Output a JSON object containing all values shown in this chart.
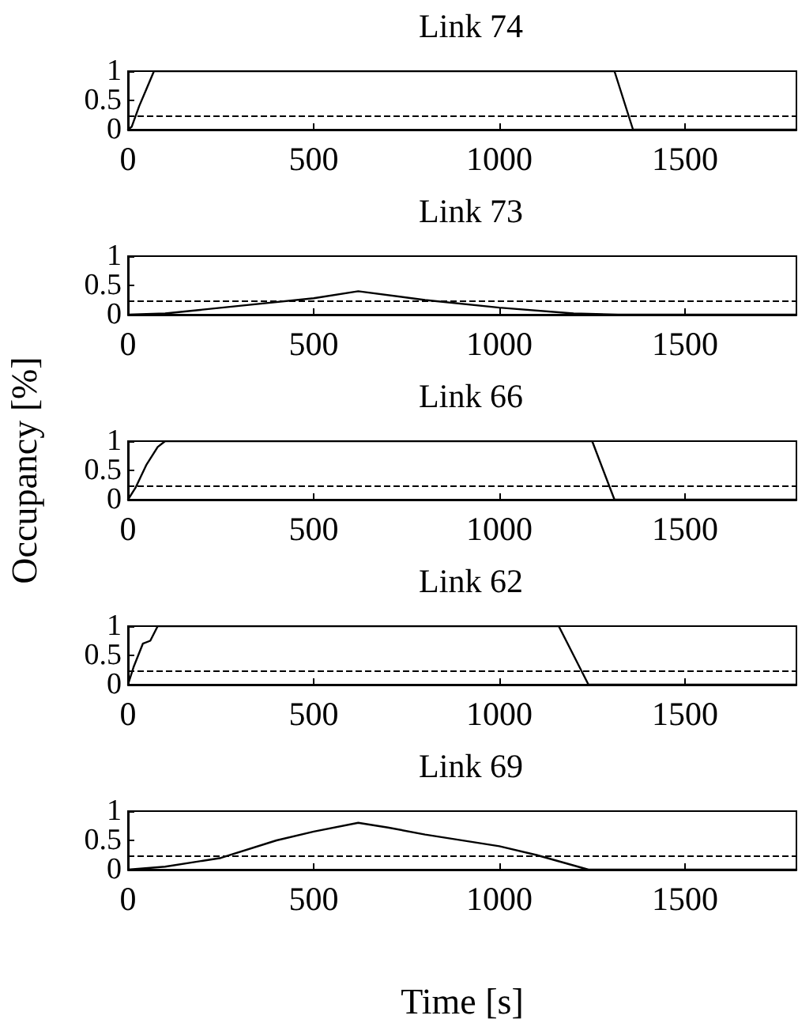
{
  "chart_data": [
    {
      "type": "line",
      "title": "Link 74",
      "x": [
        0,
        10,
        30,
        50,
        70,
        1310,
        1360,
        1800
      ],
      "values": [
        0,
        0.05,
        0.4,
        0.7,
        1,
        1,
        0,
        0
      ],
      "color": "#000000",
      "xlim": [
        0,
        1800
      ],
      "xticks": [
        0,
        500,
        1000,
        1500
      ],
      "ylim": [
        0,
        1
      ],
      "yticks": [
        0,
        0.5,
        1
      ],
      "ref_lines": [
        {
          "axis": "y",
          "value": 0.25,
          "line_style": "dashed",
          "color": "#000000"
        }
      ],
      "grid": false,
      "marker": "none",
      "line_style": "solid"
    },
    {
      "type": "line",
      "title": "Link 73",
      "x": [
        0,
        100,
        300,
        500,
        620,
        800,
        1000,
        1200,
        1320,
        1800
      ],
      "values": [
        0,
        0.02,
        0.15,
        0.28,
        0.4,
        0.25,
        0.12,
        0.02,
        0,
        0
      ],
      "color": "#000000",
      "xlim": [
        0,
        1800
      ],
      "xticks": [
        0,
        500,
        1000,
        1500
      ],
      "ylim": [
        0,
        1
      ],
      "yticks": [
        0,
        0.5,
        1
      ],
      "ref_lines": [
        {
          "axis": "y",
          "value": 0.25,
          "line_style": "dashed",
          "color": "#000000"
        }
      ],
      "grid": false,
      "marker": "none",
      "line_style": "solid"
    },
    {
      "type": "line",
      "title": "Link 66",
      "ylabel": "Occupancy [%]",
      "x": [
        0,
        20,
        50,
        80,
        100,
        1250,
        1310,
        1800
      ],
      "values": [
        0,
        0.2,
        0.6,
        0.9,
        1,
        1,
        0,
        0
      ],
      "color": "#000000",
      "xlim": [
        0,
        1800
      ],
      "xticks": [
        0,
        500,
        1000,
        1500
      ],
      "ylim": [
        0,
        1
      ],
      "yticks": [
        0,
        0.5,
        1
      ],
      "ref_lines": [
        {
          "axis": "y",
          "value": 0.25,
          "line_style": "dashed",
          "color": "#000000"
        }
      ],
      "grid": false,
      "marker": "none",
      "line_style": "solid"
    },
    {
      "type": "line",
      "title": "Link 62",
      "x": [
        0,
        15,
        40,
        60,
        80,
        1160,
        1240,
        1800
      ],
      "values": [
        0,
        0.3,
        0.7,
        0.75,
        1,
        1,
        0,
        0
      ],
      "color": "#000000",
      "xlim": [
        0,
        1800
      ],
      "xticks": [
        0,
        500,
        1000,
        1500
      ],
      "ylim": [
        0,
        1
      ],
      "yticks": [
        0,
        0.5,
        1
      ],
      "ref_lines": [
        {
          "axis": "y",
          "value": 0.25,
          "line_style": "dashed",
          "color": "#000000"
        }
      ],
      "grid": false,
      "marker": "none",
      "line_style": "solid"
    },
    {
      "type": "line",
      "title": "Link 69",
      "xlabel": "Time [s]",
      "x": [
        0,
        100,
        250,
        400,
        500,
        620,
        700,
        800,
        1000,
        1100,
        1240,
        1800
      ],
      "values": [
        0,
        0.05,
        0.2,
        0.5,
        0.65,
        0.8,
        0.72,
        0.6,
        0.4,
        0.25,
        0,
        0
      ],
      "color": "#000000",
      "xlim": [
        0,
        1800
      ],
      "xticks": [
        0,
        500,
        1000,
        1500
      ],
      "ylim": [
        0,
        1
      ],
      "yticks": [
        0,
        0.5,
        1
      ],
      "ref_lines": [
        {
          "axis": "y",
          "value": 0.25,
          "line_style": "dashed",
          "color": "#000000"
        }
      ],
      "grid": false,
      "marker": "none",
      "line_style": "solid"
    }
  ]
}
